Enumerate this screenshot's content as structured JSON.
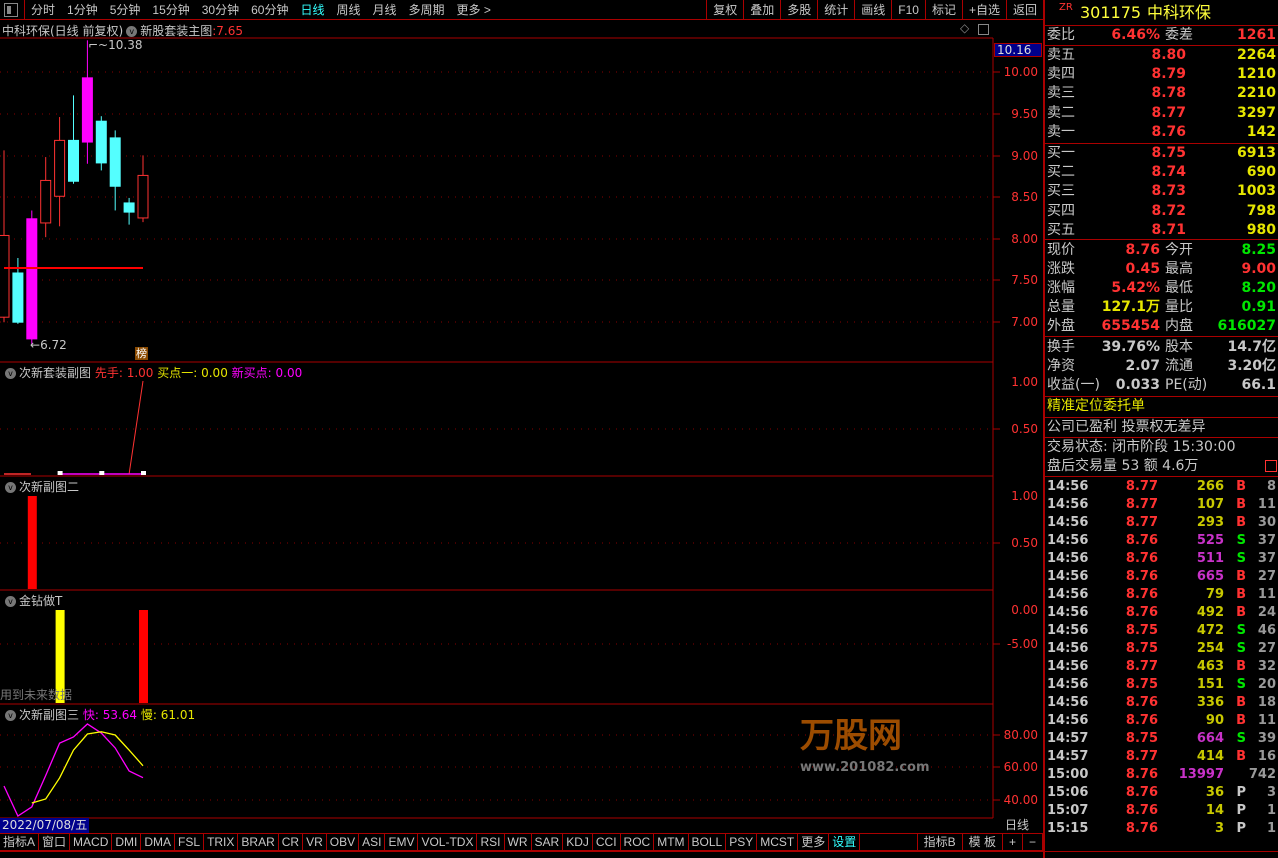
{
  "toolbar": {
    "periods": [
      "分时",
      "1分钟",
      "5分钟",
      "15分钟",
      "30分钟",
      "60分钟",
      "日线",
      "周线",
      "月线",
      "多周期",
      "更多 >"
    ],
    "active_period": "日线",
    "actions": [
      "复权",
      "叠加",
      "多股",
      "统计",
      "画线",
      "F10",
      "标记",
      "+自选",
      "返回"
    ]
  },
  "main_chart": {
    "title": "中科环保(日线 前复权)",
    "indicator": "新股套装主图",
    "indicator_value": ":7.65",
    "current_label": "10.16",
    "high_label": "10.38",
    "low_label": "6.72",
    "badge": "榜",
    "y_ticks": [
      "10.00",
      "9.50",
      "9.00",
      "8.50",
      "8.00",
      "7.50",
      "7.00"
    ],
    "level_line": 7.65,
    "candles": [
      {
        "o": 7.06,
        "h": 9.06,
        "l": 7.0,
        "c": 8.04,
        "color": "red"
      },
      {
        "o": 7.59,
        "h": 7.77,
        "l": 6.98,
        "c": 7.0,
        "color": "cyan"
      },
      {
        "o": 6.8,
        "h": 8.34,
        "l": 6.72,
        "c": 8.24,
        "color": "magenta"
      },
      {
        "o": 8.19,
        "h": 8.98,
        "l": 8.02,
        "c": 8.7,
        "color": "red"
      },
      {
        "o": 8.51,
        "h": 9.46,
        "l": 8.15,
        "c": 9.18,
        "color": "red"
      },
      {
        "o": 9.18,
        "h": 9.72,
        "l": 8.66,
        "c": 8.69,
        "color": "cyan"
      },
      {
        "o": 9.16,
        "h": 10.38,
        "l": 8.9,
        "c": 9.93,
        "color": "magenta"
      },
      {
        "o": 9.41,
        "h": 9.47,
        "l": 8.82,
        "c": 8.91,
        "color": "cyan"
      },
      {
        "o": 9.21,
        "h": 9.3,
        "l": 8.34,
        "c": 8.63,
        "color": "cyan"
      },
      {
        "o": 8.43,
        "h": 8.49,
        "l": 8.17,
        "c": 8.32,
        "color": "cyan"
      },
      {
        "o": 8.25,
        "h": 9.0,
        "l": 8.2,
        "c": 8.76,
        "color": "red"
      }
    ]
  },
  "sub1": {
    "title": "次新套装副图",
    "l1": "先手: 1.00",
    "l2": "买点一: 0.00",
    "l3": "新买点: 0.00",
    "y_ticks": [
      "1.00",
      "0.50"
    ],
    "xianshou": [
      0,
      0,
      0,
      0,
      0,
      0,
      0,
      0,
      0,
      0,
      1.0
    ],
    "maidian": [
      null,
      null,
      null,
      null,
      0,
      0,
      0,
      0,
      0,
      0,
      0
    ]
  },
  "sub2": {
    "title": "次新副图二",
    "y_ticks": [
      "1.00",
      "0.50"
    ],
    "bars": [
      0,
      0,
      1,
      0,
      0,
      0,
      0,
      0,
      0,
      0,
      0
    ]
  },
  "sub3": {
    "title": "金钻做T",
    "note": "用到未来数据",
    "y_ticks": [
      "0.00",
      "-5.00"
    ],
    "bars": [
      null,
      null,
      null,
      null,
      "yellow",
      null,
      null,
      null,
      null,
      null,
      "red"
    ]
  },
  "sub4": {
    "title": "次新副图三",
    "fast_label": "快: 53.64",
    "slow_label": "慢: 61.01",
    "y_ticks": [
      "80.00",
      "60.00",
      "40.00"
    ],
    "fast": [
      48.5,
      30,
      35.6,
      55,
      75,
      78.8,
      86.8,
      81.2,
      72,
      57.8,
      53.64
    ],
    "slow": [
      null,
      null,
      38,
      40.5,
      53.5,
      70.7,
      80.6,
      82,
      80,
      70.7,
      61.01
    ]
  },
  "date_label": "2022/07/08/五",
  "period_label": "日线",
  "indicator_tabs": [
    "指标A",
    "窗口",
    "MACD",
    "DMI",
    "DMA",
    "FSL",
    "TRIX",
    "BRAR",
    "CR",
    "VR",
    "OBV",
    "ASI",
    "EMV",
    "VOL-TDX",
    "RSI",
    "WR",
    "SAR",
    "KDJ",
    "CCI",
    "ROC",
    "MTM",
    "BOLL",
    "PSY",
    "MCST",
    "更多",
    "设置"
  ],
  "indicator_tabs_right": [
    "指标B",
    "模 板",
    "+",
    "−"
  ],
  "quote": {
    "prefix": "ZR",
    "code": "301175",
    "name": "中科环保",
    "weibi_label": "委比",
    "weibi": "6.46%",
    "weicha_label": "委差",
    "weicha": "1261",
    "asks": [
      {
        "l": "卖五",
        "p": "8.80",
        "v": "2264"
      },
      {
        "l": "卖四",
        "p": "8.79",
        "v": "1210"
      },
      {
        "l": "卖三",
        "p": "8.78",
        "v": "2210"
      },
      {
        "l": "卖二",
        "p": "8.77",
        "v": "3297"
      },
      {
        "l": "卖一",
        "p": "8.76",
        "v": "142"
      }
    ],
    "bids": [
      {
        "l": "买一",
        "p": "8.75",
        "v": "6913"
      },
      {
        "l": "买二",
        "p": "8.74",
        "v": "690"
      },
      {
        "l": "买三",
        "p": "8.73",
        "v": "1003"
      },
      {
        "l": "买四",
        "p": "8.72",
        "v": "798"
      },
      {
        "l": "买五",
        "p": "8.71",
        "v": "980"
      }
    ],
    "stats": [
      {
        "l1": "现价",
        "v1": "8.76",
        "c1": "#ff3232",
        "l2": "今开",
        "v2": "8.25",
        "c2": "#00e600"
      },
      {
        "l1": "涨跌",
        "v1": "0.45",
        "c1": "#ff3232",
        "l2": "最高",
        "v2": "9.00",
        "c2": "#ff3232"
      },
      {
        "l1": "涨幅",
        "v1": "5.42%",
        "c1": "#ff3232",
        "l2": "最低",
        "v2": "8.20",
        "c2": "#00e600"
      },
      {
        "l1": "总量",
        "v1": "127.1万",
        "c1": "#e6e600",
        "l2": "量比",
        "v2": "0.91",
        "c2": "#00e600"
      },
      {
        "l1": "外盘",
        "v1": "655454",
        "c1": "#ff3232",
        "l2": "内盘",
        "v2": "616027",
        "c2": "#00e600"
      }
    ],
    "fund": [
      {
        "l1": "换手",
        "v1": "39.76%",
        "l2": "股本",
        "v2": "14.7亿"
      },
      {
        "l1": "净资",
        "v1": "2.07",
        "l2": "流通",
        "v2": "3.20亿"
      },
      {
        "l1": "收益(一)",
        "v1": "0.033",
        "l2": "PE(动)",
        "v2": "66.1"
      }
    ],
    "precise_order": "精准定位委托单",
    "company_note": "公司已盈利 投票权无差异",
    "trade_status": "交易状态: 闭市阶段 15:30:00",
    "after_hours": "盘后交易量 53 额 4.6万"
  },
  "ticks": [
    {
      "t": "14:56",
      "p": "8.77",
      "v": "266",
      "s": "B",
      "n": "8",
      "vc": "y"
    },
    {
      "t": "14:56",
      "p": "8.77",
      "v": "107",
      "s": "B",
      "n": "11",
      "vc": "y"
    },
    {
      "t": "14:56",
      "p": "8.77",
      "v": "293",
      "s": "B",
      "n": "30",
      "vc": "y"
    },
    {
      "t": "14:56",
      "p": "8.76",
      "v": "525",
      "s": "S",
      "n": "37",
      "vc": "m"
    },
    {
      "t": "14:56",
      "p": "8.76",
      "v": "511",
      "s": "S",
      "n": "37",
      "vc": "m"
    },
    {
      "t": "14:56",
      "p": "8.76",
      "v": "665",
      "s": "B",
      "n": "27",
      "vc": "m"
    },
    {
      "t": "14:56",
      "p": "8.76",
      "v": "79",
      "s": "B",
      "n": "11",
      "vc": "y"
    },
    {
      "t": "14:56",
      "p": "8.76",
      "v": "492",
      "s": "B",
      "n": "24",
      "vc": "y"
    },
    {
      "t": "14:56",
      "p": "8.75",
      "v": "472",
      "s": "S",
      "n": "46",
      "vc": "y"
    },
    {
      "t": "14:56",
      "p": "8.75",
      "v": "254",
      "s": "S",
      "n": "27",
      "vc": "y"
    },
    {
      "t": "14:56",
      "p": "8.77",
      "v": "463",
      "s": "B",
      "n": "32",
      "vc": "y"
    },
    {
      "t": "14:56",
      "p": "8.75",
      "v": "151",
      "s": "S",
      "n": "20",
      "vc": "y"
    },
    {
      "t": "14:56",
      "p": "8.76",
      "v": "336",
      "s": "B",
      "n": "18",
      "vc": "y"
    },
    {
      "t": "14:56",
      "p": "8.76",
      "v": "90",
      "s": "B",
      "n": "11",
      "vc": "y"
    },
    {
      "t": "14:57",
      "p": "8.75",
      "v": "664",
      "s": "S",
      "n": "39",
      "vc": "m"
    },
    {
      "t": "14:57",
      "p": "8.77",
      "v": "414",
      "s": "B",
      "n": "16",
      "vc": "y"
    },
    {
      "t": "15:00",
      "p": "8.76",
      "v": "13997",
      "s": "",
      "n": "742",
      "vc": "m"
    },
    {
      "t": "15:06",
      "p": "8.76",
      "v": "36",
      "s": "P",
      "n": "3",
      "vc": "y"
    },
    {
      "t": "15:07",
      "p": "8.76",
      "v": "14",
      "s": "P",
      "n": "1",
      "vc": "y"
    },
    {
      "t": "15:15",
      "p": "8.76",
      "v": "3",
      "s": "P",
      "n": "1",
      "vc": "y"
    }
  ],
  "watermark": {
    "text": "万股网",
    "url": "www.201082.com"
  },
  "colors": {
    "up": "#ff3232",
    "down": "#54ffff",
    "limit": "#ff00ff",
    "border": "#aa0000",
    "yellow": "#e6e600",
    "green": "#00e600"
  }
}
